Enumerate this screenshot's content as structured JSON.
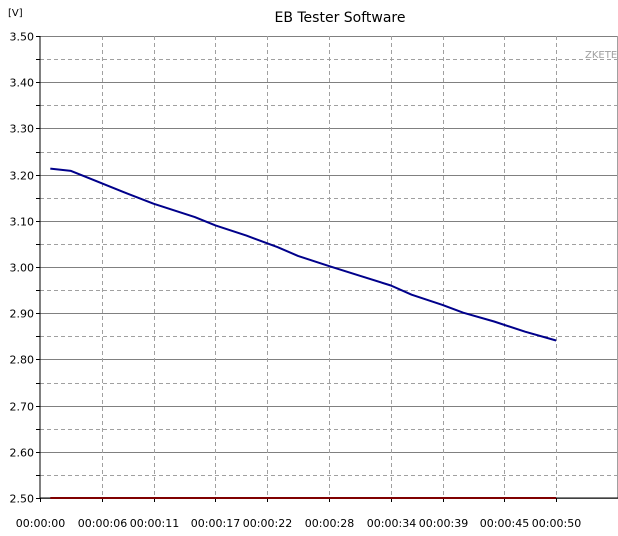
{
  "chart_data": {
    "type": "line",
    "title": "EB Tester Software",
    "ylabel": "[V]",
    "xlabel": "",
    "watermark": "ZKETE",
    "ylim": [
      2.5,
      3.5
    ],
    "y_ticks": [
      "3.50",
      "3.45",
      "3.40",
      "3.35",
      "3.30",
      "3.25",
      "3.20",
      "3.15",
      "3.10",
      "3.05",
      "3.00",
      "2.95",
      "2.90",
      "2.85",
      "2.80",
      "2.75",
      "2.70",
      "2.65",
      "2.60",
      "2.55",
      "2.50"
    ],
    "y_tick_values": [
      3.5,
      3.45,
      3.4,
      3.35,
      3.3,
      3.25,
      3.2,
      3.15,
      3.1,
      3.05,
      3.0,
      2.95,
      2.9,
      2.85,
      2.8,
      2.75,
      2.7,
      2.65,
      2.6,
      2.55,
      2.5
    ],
    "y_labeled_ticks": [
      "3.50",
      "3.40",
      "3.30",
      "3.20",
      "3.10",
      "3.00",
      "2.90",
      "2.80",
      "2.70",
      "2.60",
      "2.50"
    ],
    "x_ticks": [
      "00:00:00",
      "00:00:06",
      "00:00:11",
      "00:00:17",
      "00:00:22",
      "00:00:28",
      "00:00:34",
      "00:00:39",
      "00:00:45",
      "00:00:50"
    ],
    "x_tick_seconds": [
      0,
      6,
      11,
      17,
      22,
      28,
      34,
      39,
      45,
      50
    ],
    "xlim_seconds": [
      0,
      56
    ],
    "grid": true,
    "series": [
      {
        "color": "#00008b",
        "x_seconds": [
          1,
          3,
          5,
          8,
          11,
          15,
          17,
          20,
          23,
          25,
          28,
          31,
          34,
          36,
          39,
          41,
          44,
          47,
          50
        ],
        "values": [
          3.213,
          3.208,
          3.19,
          3.163,
          3.137,
          3.108,
          3.09,
          3.068,
          3.043,
          3.024,
          3.002,
          2.981,
          2.96,
          2.94,
          2.918,
          2.901,
          2.882,
          2.86,
          2.841
        ]
      },
      {
        "color": "#ff0000",
        "x_seconds": [
          1,
          50
        ],
        "values": [
          2.5,
          2.5
        ]
      }
    ]
  }
}
